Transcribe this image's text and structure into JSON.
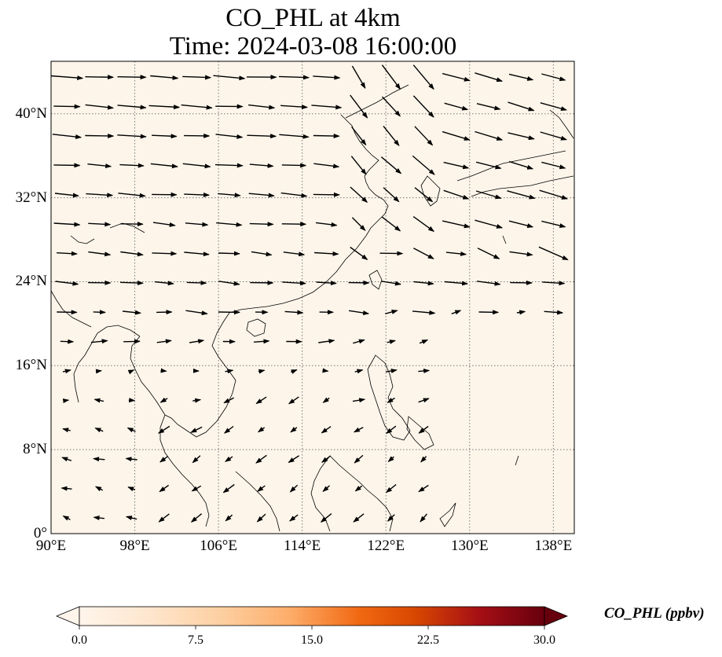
{
  "title": "CO_PHL at 4km",
  "subtitle": "Time: 2024-03-08 16:00:00",
  "map": {
    "extent": {
      "lon": [
        90,
        140
      ],
      "lat": [
        0,
        45
      ]
    },
    "background_color": "#fdf5ea",
    "coastline_color": "#000000",
    "gridlines": true,
    "lat_ticks": [
      {
        "value": 40,
        "label": "40°N"
      },
      {
        "value": 32,
        "label": "32°N"
      },
      {
        "value": 24,
        "label": "24°N"
      },
      {
        "value": 16,
        "label": "16°N"
      },
      {
        "value": 8,
        "label": "8°N"
      },
      {
        "value": 0,
        "label": "0°"
      }
    ],
    "lon_ticks": [
      {
        "value": 90,
        "label": "90°E"
      },
      {
        "value": 98,
        "label": "98°E"
      },
      {
        "value": 106,
        "label": "106°E"
      },
      {
        "value": 114,
        "label": "114°E"
      },
      {
        "value": 122,
        "label": "122°E"
      },
      {
        "value": 130,
        "label": "130°E"
      },
      {
        "value": 138,
        "label": "138°E"
      }
    ]
  },
  "colorbar": {
    "label": "CO_PHL (ppbv)",
    "ticks": [
      "0.0",
      "7.5",
      "15.0",
      "22.5",
      "30.0"
    ],
    "range": [
      0,
      30
    ],
    "extend": "both",
    "colors": [
      "#fff5eb",
      "#fee6ce",
      "#fdd0a2",
      "#fdae6b",
      "#f16913",
      "#d94801",
      "#a50f15",
      "#67000d"
    ]
  }
}
